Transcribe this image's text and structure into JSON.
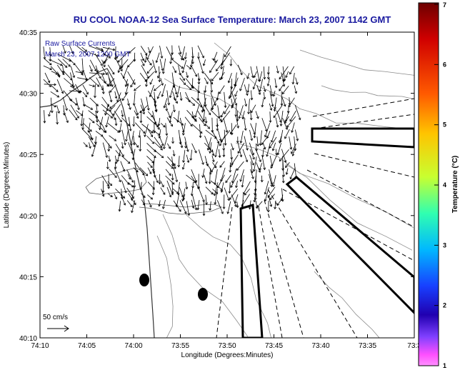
{
  "title": "RU COOL  NOAA-12  Sea Surface Temperature:  March 23, 2007 1142 GMT",
  "legend": {
    "line1": "Raw Surface Currents",
    "line2": "March 23, 2007 1200 GMT"
  },
  "scale_label": "50 cm/s",
  "x_axis": {
    "label": "Longitude (Degrees:Minutes)",
    "ticks": [
      "74:10",
      "74:05",
      "74:00",
      "73:55",
      "73:50",
      "73:45",
      "73:40",
      "73:35",
      "73:3"
    ]
  },
  "y_axis": {
    "label": "Latitude (Degrees:Minutes)",
    "ticks": [
      "40:35",
      "40:30",
      "40:25",
      "40:20",
      "40:15",
      "40:10"
    ]
  },
  "colorbar": {
    "label": "Temperature (°C)",
    "ticks": [
      "7",
      "6",
      "5",
      "4",
      "3",
      "2",
      "1"
    ],
    "colors": [
      "#7a0000",
      "#d60000",
      "#ff6a00",
      "#ffd000",
      "#b8ff40",
      "#20ffd0",
      "#00a8ff",
      "#2030ff",
      "#2000a0",
      "#8a40ff",
      "#ff40ff",
      "#ff80ff"
    ]
  },
  "chart_data": {
    "type": "map",
    "title": "RU COOL  NOAA-12  Sea Surface Temperature:  March 23, 2007 1142 GMT",
    "xlabel": "Longitude (Degrees:Minutes)",
    "ylabel": "Latitude (Degrees:Minutes)",
    "xlim_minutes_west": [
      610,
      573
    ],
    "ylim_minutes_north": [
      2410,
      2435
    ],
    "colorbar_range": [
      1,
      7
    ],
    "current_scale_cm_s": 50
  }
}
